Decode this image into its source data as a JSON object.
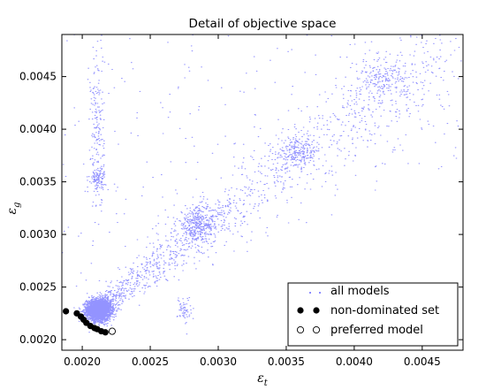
{
  "chart_data": {
    "type": "scatter",
    "title": "Detail of objective space",
    "xlabel": "ε_t",
    "ylabel": "ε_g",
    "xlim": [
      0.00185,
      0.0048
    ],
    "ylim": [
      0.0019,
      0.0049
    ],
    "x_ticks": [
      0.002,
      0.0025,
      0.003,
      0.0035,
      0.004,
      0.0045
    ],
    "x_tick_labels": [
      "0.0020",
      "0.0025",
      "0.0030",
      "0.0035",
      "0.0040",
      "0.0045"
    ],
    "y_ticks": [
      0.002,
      0.0025,
      0.003,
      0.0035,
      0.004,
      0.0045
    ],
    "y_tick_labels": [
      "0.0020",
      "0.0025",
      "0.0030",
      "0.0035",
      "0.0040",
      "0.0045"
    ],
    "grid": false,
    "legend_position": "lower-right",
    "series": [
      {
        "name": "all models",
        "marker": "dot",
        "color": "#3a3aff",
        "clusters": [
          {
            "x": 0.00212,
            "y": 0.00228,
            "sx": 4.5e-05,
            "sy": 5e-05,
            "n": 2600
          },
          {
            "x": 0.00285,
            "y": 0.0031,
            "sx": 8e-05,
            "sy": 8e-05,
            "n": 350
          },
          {
            "x": 0.00358,
            "y": 0.00378,
            "sx": 8e-05,
            "sy": 7e-05,
            "n": 220
          },
          {
            "x": 0.0042,
            "y": 0.00448,
            "sx": 0.0001,
            "sy": 9e-05,
            "n": 170
          },
          {
            "x": 0.00211,
            "y": 0.00353,
            "sx": 3e-05,
            "sy": 5e-05,
            "n": 110
          },
          {
            "x": 0.00275,
            "y": 0.00228,
            "sx": 2.5e-05,
            "sy": 7e-05,
            "n": 60
          },
          {
            "x": 0.00211,
            "y": 0.004,
            "sx": 2.5e-05,
            "sy": 0.0004,
            "n": 170
          }
        ],
        "trend_band": {
          "x_start": 0.0021,
          "y_start": 0.00228,
          "x_end": 0.0047,
          "y_end": 0.0048,
          "n": 1300
        },
        "background_n": 320
      },
      {
        "name": "non-dominated set",
        "marker": "filled-circle",
        "color": "#000000",
        "x": [
          0.00188,
          0.00196,
          0.00199,
          0.00201,
          0.00203,
          0.00206,
          0.00209,
          0.00211,
          0.00214,
          0.00217
        ],
        "y": [
          0.00227,
          0.00225,
          0.00222,
          0.00219,
          0.00216,
          0.00213,
          0.00211,
          0.0021,
          0.00208,
          0.00207
        ]
      },
      {
        "name": "preferred model",
        "marker": "open-circle",
        "color": "#000000",
        "x": [
          0.00222
        ],
        "y": [
          0.00208
        ]
      }
    ]
  }
}
